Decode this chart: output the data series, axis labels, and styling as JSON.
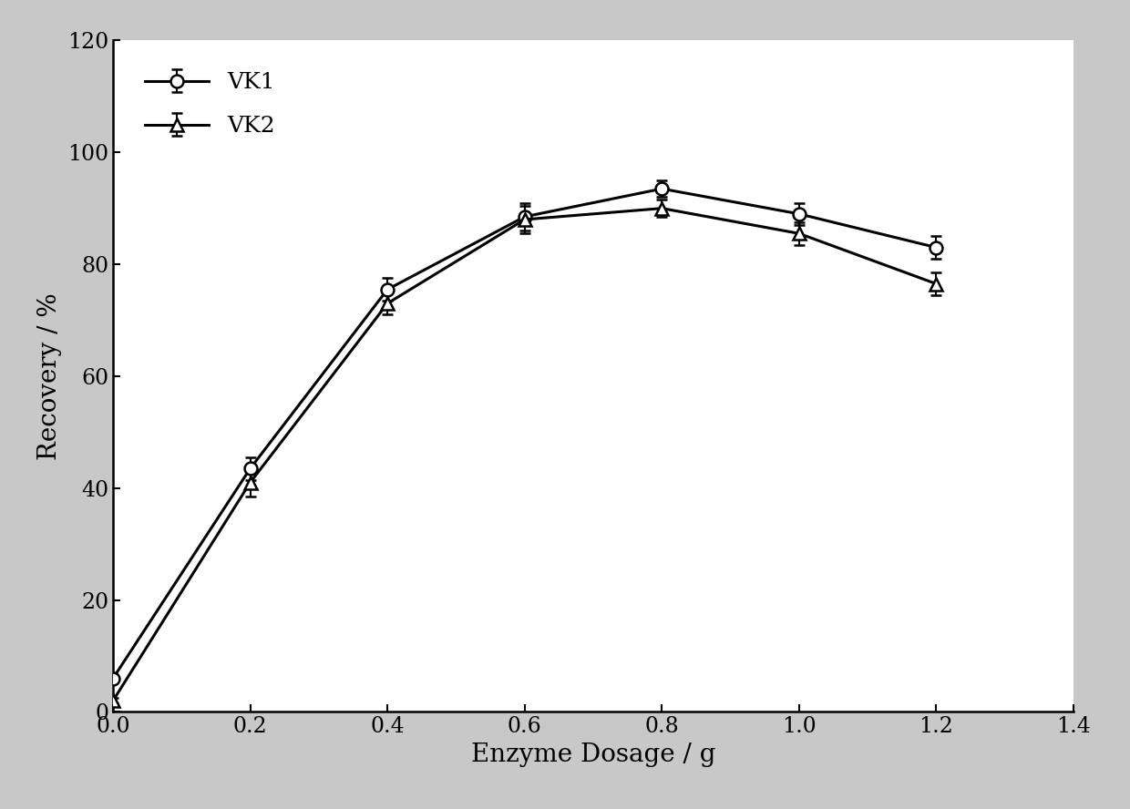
{
  "vk1_x": [
    0.0,
    0.2,
    0.4,
    0.6,
    0.8,
    1.0,
    1.2
  ],
  "vk1_y": [
    6.0,
    43.5,
    75.5,
    88.5,
    93.5,
    89.0,
    83.0
  ],
  "vk1_err": [
    0.5,
    2.0,
    2.0,
    2.5,
    1.5,
    2.0,
    2.0
  ],
  "vk2_x": [
    0.0,
    0.2,
    0.4,
    0.6,
    0.8,
    1.0,
    1.2
  ],
  "vk2_y": [
    2.0,
    41.0,
    73.0,
    88.0,
    90.0,
    85.5,
    76.5
  ],
  "vk2_err": [
    0.5,
    2.5,
    2.0,
    2.5,
    1.5,
    2.0,
    2.0
  ],
  "xlabel": "Enzyme Dosage / g",
  "ylabel": "Recovery / %",
  "xlim": [
    0.0,
    1.4
  ],
  "ylim": [
    0,
    120
  ],
  "xticks": [
    0.0,
    0.2,
    0.4,
    0.6,
    0.8,
    1.0,
    1.2,
    1.4
  ],
  "yticks": [
    0,
    20,
    40,
    60,
    80,
    100,
    120
  ],
  "vk1_label": "VK1",
  "vk2_label": "VK2",
  "line_color": "#000000",
  "background_color": "#c8c8c8",
  "axes_background_color": "#ffffff",
  "fontsize_axis_label": 20,
  "fontsize_tick": 17,
  "fontsize_legend": 18,
  "linewidth": 2.2,
  "markersize_circle": 10,
  "markersize_triangle": 10
}
